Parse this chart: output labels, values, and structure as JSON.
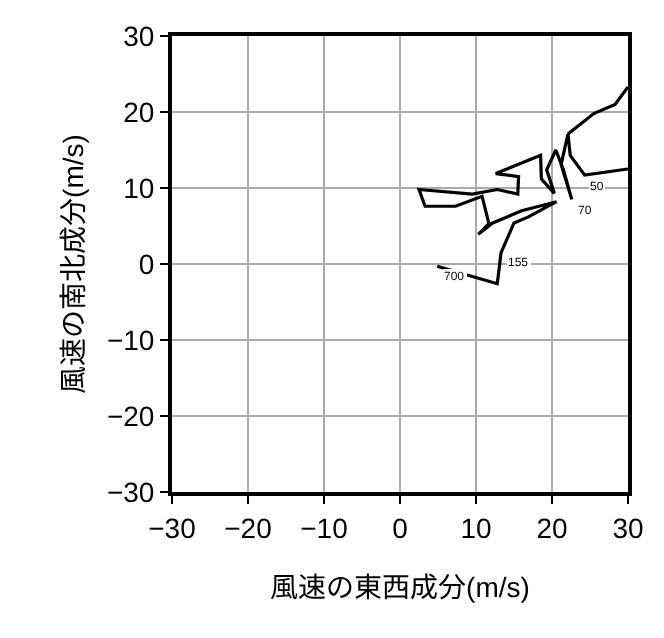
{
  "chart_data": {
    "type": "line",
    "xlabel": "風速の東西成分(m/s)",
    "ylabel": "風速の南北成分(m/s)",
    "x": [
      4.9,
      12.8,
      13.3,
      15.0,
      16.9,
      20.6,
      16.0,
      12.2,
      10.3,
      11.7,
      10.8,
      7.3,
      3.3,
      2.5,
      9.5,
      12.8,
      15.5,
      15.6,
      12.6,
      18.5,
      18.6,
      20.3,
      19.3,
      20.5,
      21.5,
      22.6,
      21.2,
      22.1,
      22.4,
      24.3,
      30.0,
      null,
      22.1,
      25.5,
      28.3,
      30.0
    ],
    "series": [
      {
        "color": "#000000",
        "values": [
          -0.3,
          -2.6,
          1.5,
          5.4,
          6.2,
          8.2,
          7.0,
          5.4,
          3.9,
          5.3,
          8.9,
          7.6,
          7.6,
          9.8,
          9.2,
          9.8,
          9.2,
          11.5,
          11.9,
          14.3,
          11.2,
          9.3,
          12.4,
          15.0,
          12.4,
          8.5,
          13.1,
          17.1,
          14.3,
          11.7,
          12.5,
          null,
          17.1,
          19.8,
          21.0,
          23.3
        ]
      }
    ],
    "annotations": [
      {
        "text": "700",
        "x": 4.9,
        "y": -0.3
      },
      {
        "text": "155",
        "x": 13.3,
        "y": 1.5
      },
      {
        "text": "70",
        "x": 22.6,
        "y": 8.5
      },
      {
        "text": "50",
        "x": 24.3,
        "y": 11.7
      }
    ],
    "xlim": [
      -30,
      30
    ],
    "ylim": [
      -30,
      30
    ],
    "xticks": [
      {
        "value": -30,
        "label": "−30"
      },
      {
        "value": -20,
        "label": "−20"
      },
      {
        "value": -10,
        "label": "−10"
      },
      0,
      10,
      20,
      30
    ],
    "yticks": [
      {
        "value": -30,
        "label": "−30"
      },
      {
        "value": -20,
        "label": "−20"
      },
      {
        "value": -10,
        "label": "−10"
      },
      0,
      10,
      20,
      30
    ],
    "grid": true,
    "marker": "none",
    "line_style": "solid"
  }
}
